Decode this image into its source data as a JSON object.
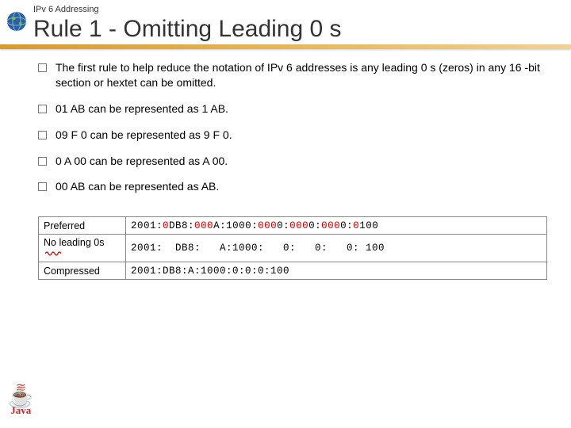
{
  "header": {
    "subtitle": "IPv 6 Addressing",
    "title": "Rule 1 - Omitting Leading 0 s"
  },
  "bullets": [
    "The first rule to help reduce the notation of IPv 6 addresses is any leading 0 s (zeros) in any 16 -bit section or hextet can be omitted.",
    "01 AB can be represented as 1 AB.",
    "09 F 0 can be represented as 9 F 0.",
    "0 A 00 can be represented as A 00.",
    "00 AB can be represented as AB."
  ],
  "table": {
    "rows": [
      {
        "label": "Preferred",
        "segments": [
          {
            "t": "2001:",
            "c": "#000"
          },
          {
            "t": "0",
            "c": "#cc0000"
          },
          {
            "t": "DB8:",
            "c": "#000"
          },
          {
            "t": "000",
            "c": "#cc0000"
          },
          {
            "t": "A:1000:",
            "c": "#000"
          },
          {
            "t": "000",
            "c": "#cc0000"
          },
          {
            "t": "0:",
            "c": "#000"
          },
          {
            "t": "000",
            "c": "#cc0000"
          },
          {
            "t": "0:",
            "c": "#000"
          },
          {
            "t": "000",
            "c": "#cc0000"
          },
          {
            "t": "0:",
            "c": "#000"
          },
          {
            "t": "0",
            "c": "#cc0000"
          },
          {
            "t": "100",
            "c": "#000"
          }
        ]
      },
      {
        "label": "No leading 0s",
        "squiggle": true,
        "segments": [
          {
            "t": "2001:  DB8:   A:1000:   0:   0:   0: 100",
            "c": "#000"
          }
        ]
      },
      {
        "label": "Compressed",
        "segments": [
          {
            "t": "2001:DB8:A:1000:0:0:0:100",
            "c": "#000"
          }
        ]
      }
    ]
  },
  "colors": {
    "accent_red": "#cc0000",
    "bar_gradient_start": "#d99a2b",
    "bar_gradient_end": "#f0d194"
  }
}
